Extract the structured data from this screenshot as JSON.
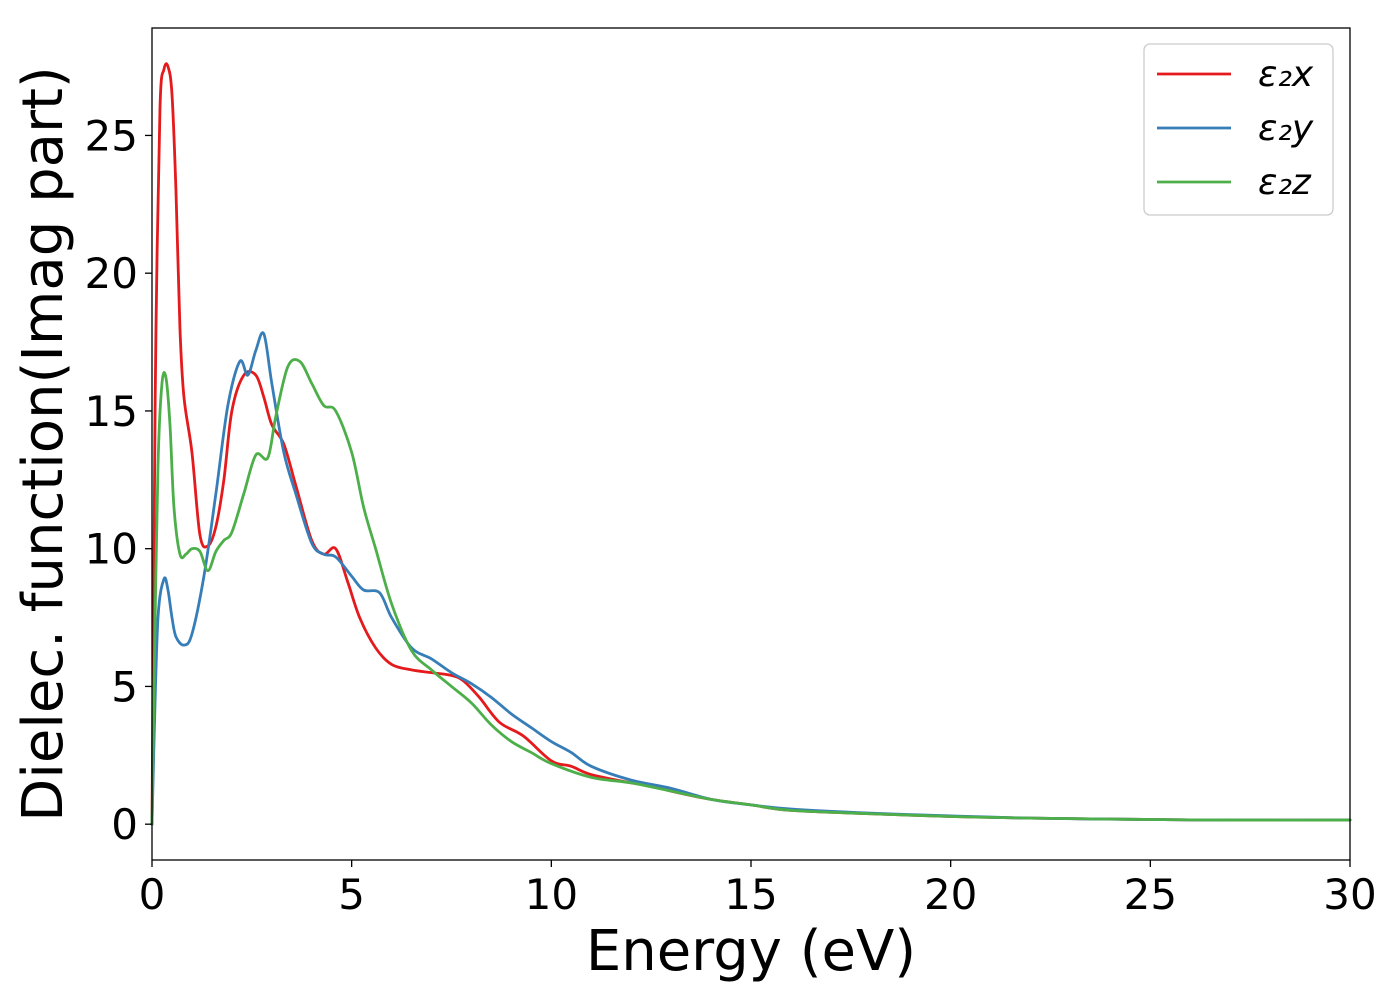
{
  "chart_data": {
    "type": "line",
    "title": "",
    "xlabel": "Energy (eV)",
    "ylabel": "Dielec. function(Imag part)",
    "xlim": [
      0,
      30
    ],
    "ylim": [
      -1.3,
      28.9
    ],
    "xticks": [
      0,
      5,
      10,
      15,
      20,
      25,
      30
    ],
    "yticks": [
      0,
      5,
      10,
      15,
      20,
      25
    ],
    "grid": false,
    "legend_position": "top-right",
    "series": [
      {
        "name": "ε₂x",
        "color": "#e41a1c",
        "x": [
          0,
          0.05,
          0.1,
          0.2,
          0.3,
          0.4,
          0.5,
          0.6,
          0.7,
          0.8,
          1.0,
          1.2,
          1.4,
          1.6,
          1.8,
          2.0,
          2.3,
          2.6,
          2.8,
          3.0,
          3.3,
          3.6,
          4.0,
          4.3,
          4.6,
          4.9,
          5.2,
          5.6,
          6.0,
          6.5,
          7.0,
          7.5,
          7.8,
          8.2,
          8.7,
          9.3,
          10.0,
          10.5,
          11.0,
          12.0,
          12.5,
          13.0,
          14.0,
          15.0,
          16.0,
          18.0,
          20.0,
          22.0,
          25.0,
          27.0,
          30.0
        ],
        "values": [
          0,
          10,
          18,
          26,
          27.4,
          27.5,
          26.5,
          23,
          18,
          15.5,
          13.5,
          10.5,
          10.1,
          10.8,
          12.5,
          15,
          16.3,
          16.3,
          15.5,
          14.5,
          13.8,
          12.3,
          10.3,
          9.8,
          10.0,
          8.8,
          7.5,
          6.4,
          5.8,
          5.6,
          5.5,
          5.4,
          5.2,
          4.6,
          3.7,
          3.2,
          2.3,
          2.1,
          1.8,
          1.5,
          1.4,
          1.2,
          0.9,
          0.7,
          0.5,
          0.38,
          0.28,
          0.22,
          0.17,
          0.15,
          0.15
        ]
      },
      {
        "name": "ε₂y",
        "color": "#377eb8",
        "x": [
          0,
          0.05,
          0.15,
          0.3,
          0.4,
          0.5,
          0.6,
          0.8,
          1.0,
          1.3,
          1.6,
          1.9,
          2.2,
          2.4,
          2.6,
          2.8,
          3.0,
          3.3,
          3.6,
          4.0,
          4.3,
          4.6,
          5.0,
          5.3,
          5.7,
          6.0,
          6.5,
          7.0,
          7.5,
          8.0,
          8.5,
          9.0,
          9.5,
          10.0,
          10.5,
          11.0,
          12.0,
          13.0,
          14.0,
          15.0,
          16.0,
          18.0,
          20.0,
          22.0,
          25.0,
          27.0,
          30.0
        ],
        "values": [
          0,
          3,
          7.5,
          8.9,
          8.5,
          7.5,
          6.8,
          6.5,
          6.9,
          9.0,
          12.0,
          15.2,
          16.8,
          16.3,
          17.2,
          17.8,
          16.0,
          13.5,
          12.0,
          10.2,
          9.8,
          9.7,
          9.0,
          8.5,
          8.4,
          7.5,
          6.4,
          6.0,
          5.5,
          5.1,
          4.6,
          4.0,
          3.5,
          3.0,
          2.6,
          2.1,
          1.6,
          1.3,
          0.9,
          0.7,
          0.55,
          0.4,
          0.3,
          0.22,
          0.17,
          0.15,
          0.15
        ]
      },
      {
        "name": "ε₂z",
        "color": "#4daf4a",
        "x": [
          0,
          0.05,
          0.15,
          0.25,
          0.35,
          0.45,
          0.55,
          0.7,
          0.85,
          1.0,
          1.2,
          1.4,
          1.6,
          1.8,
          2.0,
          2.3,
          2.6,
          2.9,
          3.1,
          3.4,
          3.7,
          4.0,
          4.3,
          4.6,
          5.0,
          5.3,
          5.6,
          6.0,
          6.5,
          7.0,
          7.5,
          8.0,
          8.5,
          9.0,
          9.5,
          10.0,
          11.0,
          12.0,
          13.0,
          14.0,
          15.0,
          16.0,
          18.0,
          20.0,
          22.0,
          25.0,
          27.0,
          30.0
        ],
        "values": [
          0,
          5,
          13,
          16.0,
          16.2,
          14.5,
          11.5,
          9.8,
          9.8,
          10.0,
          9.9,
          9.2,
          9.9,
          10.3,
          10.6,
          12.0,
          13.4,
          13.3,
          14.8,
          16.6,
          16.8,
          16.0,
          15.2,
          15.0,
          13.5,
          11.5,
          10.0,
          8.0,
          6.3,
          5.6,
          5.0,
          4.4,
          3.6,
          3.0,
          2.6,
          2.2,
          1.7,
          1.5,
          1.2,
          0.9,
          0.7,
          0.5,
          0.38,
          0.28,
          0.22,
          0.17,
          0.15,
          0.15
        ]
      }
    ]
  }
}
